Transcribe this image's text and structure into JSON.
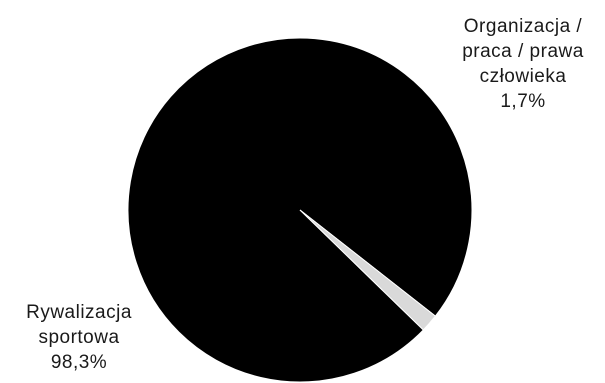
{
  "chart_data": {
    "type": "pie",
    "title": "",
    "slices": [
      {
        "label_lines": [
          "Rywalizacja",
          "sportowa"
        ],
        "value": 98.3,
        "value_label": "98,3%",
        "color": "#000000"
      },
      {
        "label_lines": [
          "Organizacja /",
          "praca / prawa",
          "człowieka"
        ],
        "value": 1.7,
        "value_label": "1,7%",
        "color": "#d9d9d9"
      }
    ],
    "legend": "none"
  }
}
